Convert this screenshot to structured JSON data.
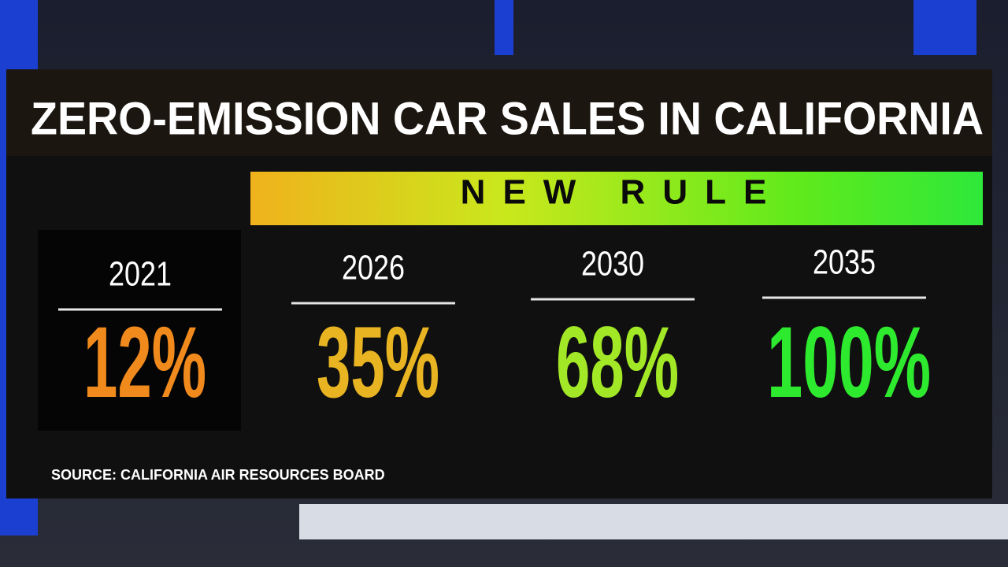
{
  "title": "ZERO-EMISSION CAR SALES IN CALIFORNIA",
  "banner": "NEW RULE",
  "panels": [
    {
      "year": "2021",
      "share": "12%"
    },
    {
      "year": "2026",
      "share": "35%"
    },
    {
      "year": "2030",
      "share": "68%"
    },
    {
      "year": "2035",
      "share": "100%"
    }
  ],
  "source": "SOURCE: CALIFORNIA AIR RESOURCES BOARD"
}
